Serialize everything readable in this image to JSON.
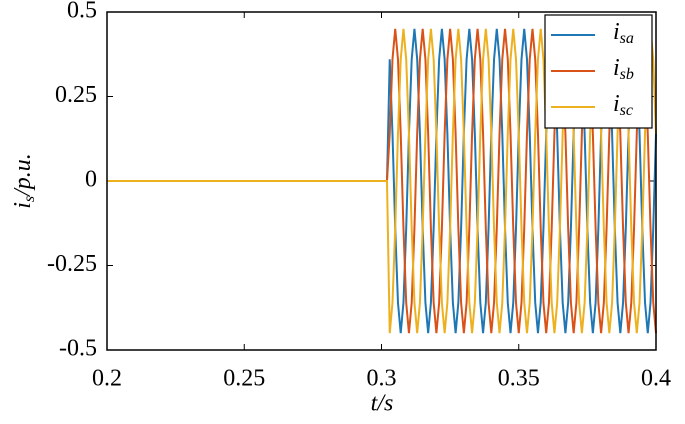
{
  "chart_data": {
    "type": "line",
    "xlabel": "t/s",
    "ylabel": "is/p.u.",
    "xlim": [
      0.2,
      0.4
    ],
    "ylim": [
      -0.5,
      0.5
    ],
    "xticks": [
      0.2,
      0.25,
      0.3,
      0.35,
      0.4
    ],
    "yticks": [
      -0.5,
      -0.25,
      0,
      0.25,
      0.5
    ],
    "legend": "upper right",
    "x": [
      0.2,
      0.25,
      0.3,
      0.302,
      0.303,
      0.304,
      0.305,
      0.306,
      0.307,
      0.308,
      0.309,
      0.31,
      0.311,
      0.312,
      0.313,
      0.314,
      0.315,
      0.316,
      0.317,
      0.318,
      0.319,
      0.32,
      0.321,
      0.322,
      0.323,
      0.324,
      0.325,
      0.326,
      0.327,
      0.328,
      0.329,
      0.33,
      0.331,
      0.332,
      0.333,
      0.334,
      0.335,
      0.336,
      0.337,
      0.338,
      0.339,
      0.34,
      0.341,
      0.342,
      0.343,
      0.344,
      0.345,
      0.346,
      0.347,
      0.348,
      0.349,
      0.35,
      0.351,
      0.352,
      0.353,
      0.354,
      0.355,
      0.356,
      0.357,
      0.358,
      0.359,
      0.36,
      0.361,
      0.362,
      0.363,
      0.364,
      0.365,
      0.366,
      0.367,
      0.368,
      0.369,
      0.37,
      0.371,
      0.372,
      0.373,
      0.374,
      0.375,
      0.376,
      0.377,
      0.378,
      0.379,
      0.38,
      0.381,
      0.382,
      0.383,
      0.384,
      0.385,
      0.386,
      0.387,
      0.388,
      0.389,
      0.39,
      0.391,
      0.392,
      0.393,
      0.394,
      0.395,
      0.396,
      0.397,
      0.398,
      0.399,
      0.4
    ],
    "series": [
      {
        "name": "isa",
        "color": "#1f77b4",
        "values": [
          0,
          0,
          0,
          0,
          0.36,
          0.14,
          -0.14,
          -0.36,
          -0.45,
          -0.36,
          -0.14,
          0.14,
          0.36,
          0.45,
          0.36,
          0.14,
          -0.14,
          -0.36,
          -0.45,
          -0.36,
          -0.14,
          0.14,
          0.36,
          0.45,
          0.36,
          0.14,
          -0.14,
          -0.36,
          -0.45,
          -0.36,
          -0.14,
          0.14,
          0.36,
          0.45,
          0.36,
          0.14,
          -0.14,
          -0.36,
          -0.45,
          -0.36,
          -0.14,
          0.14,
          0.36,
          0.45,
          0.36,
          0.14,
          -0.14,
          -0.36,
          -0.45,
          -0.36,
          -0.14,
          0.14,
          0.36,
          0.45,
          0.36,
          0.14,
          -0.14,
          -0.36,
          -0.45,
          -0.36,
          -0.14,
          0.14,
          0.36,
          0.45,
          0.36,
          0.14,
          -0.14,
          -0.36,
          -0.45,
          -0.36,
          -0.14,
          0.14,
          0.36,
          0.45,
          0.36,
          0.14,
          -0.14,
          -0.36,
          -0.45,
          -0.36,
          -0.14,
          0.14,
          0.36,
          0.45,
          0.36,
          0.14,
          -0.14,
          -0.36,
          -0.45,
          -0.36,
          -0.14,
          0.14,
          0.36,
          0.45,
          0.36,
          0.14,
          -0.14,
          -0.36,
          -0.45,
          -0.36,
          -0.14,
          0.14
        ]
      },
      {
        "name": "isb",
        "color": "#d95319",
        "values": [
          0,
          0,
          0,
          0,
          0.14,
          0.36,
          0.45,
          0.36,
          0.14,
          -0.14,
          -0.36,
          -0.45,
          -0.36,
          -0.14,
          0.14,
          0.36,
          0.45,
          0.36,
          0.14,
          -0.14,
          -0.36,
          -0.45,
          -0.36,
          -0.14,
          0.14,
          0.36,
          0.45,
          0.36,
          0.14,
          -0.14,
          -0.36,
          -0.45,
          -0.36,
          -0.14,
          0.14,
          0.36,
          0.45,
          0.36,
          0.14,
          -0.14,
          -0.36,
          -0.45,
          -0.36,
          -0.14,
          0.14,
          0.36,
          0.45,
          0.36,
          0.14,
          -0.14,
          -0.36,
          -0.45,
          -0.36,
          -0.14,
          0.14,
          0.36,
          0.45,
          0.36,
          0.14,
          -0.14,
          -0.36,
          -0.45,
          -0.36,
          -0.14,
          0.14,
          0.36,
          0.45,
          0.36,
          0.14,
          -0.14,
          -0.36,
          -0.45,
          -0.36,
          -0.14,
          0.14,
          0.36,
          0.45,
          0.36,
          0.14,
          -0.14,
          -0.36,
          -0.45,
          -0.36,
          -0.14,
          0.14,
          0.36,
          0.45,
          0.36,
          0.14,
          -0.14,
          -0.36,
          -0.45,
          -0.36,
          -0.14,
          0.14,
          0.36,
          0.45,
          0.36,
          0.14,
          -0.14,
          -0.36,
          -0.45
        ]
      },
      {
        "name": "isc",
        "color": "#edb120",
        "values": [
          0,
          0,
          0,
          0,
          -0.45,
          -0.36,
          -0.14,
          0.14,
          0.36,
          0.45,
          0.36,
          0.14,
          -0.14,
          -0.36,
          -0.45,
          -0.36,
          -0.14,
          0.14,
          0.36,
          0.45,
          0.36,
          0.14,
          -0.14,
          -0.36,
          -0.45,
          -0.36,
          -0.14,
          0.14,
          0.36,
          0.45,
          0.36,
          0.14,
          -0.14,
          -0.36,
          -0.45,
          -0.36,
          -0.14,
          0.14,
          0.36,
          0.45,
          0.36,
          0.14,
          -0.14,
          -0.36,
          -0.45,
          -0.36,
          -0.14,
          0.14,
          0.36,
          0.45,
          0.36,
          0.14,
          -0.14,
          -0.36,
          -0.45,
          -0.36,
          -0.14,
          0.14,
          0.36,
          0.45,
          0.36,
          0.14,
          -0.14,
          -0.36,
          -0.45,
          -0.36,
          -0.14,
          0.14,
          0.36,
          0.45,
          0.36,
          0.14,
          -0.14,
          -0.36,
          -0.45,
          -0.36,
          -0.14,
          0.14,
          0.36,
          0.45,
          0.36,
          0.14,
          -0.14,
          -0.36,
          -0.45,
          -0.36,
          -0.14,
          0.14,
          0.36,
          0.45,
          0.36,
          0.14,
          -0.14,
          -0.36,
          -0.45,
          -0.36,
          -0.14,
          0.14,
          0.36,
          0.45,
          0.36,
          0.14
        ]
      }
    ]
  }
}
